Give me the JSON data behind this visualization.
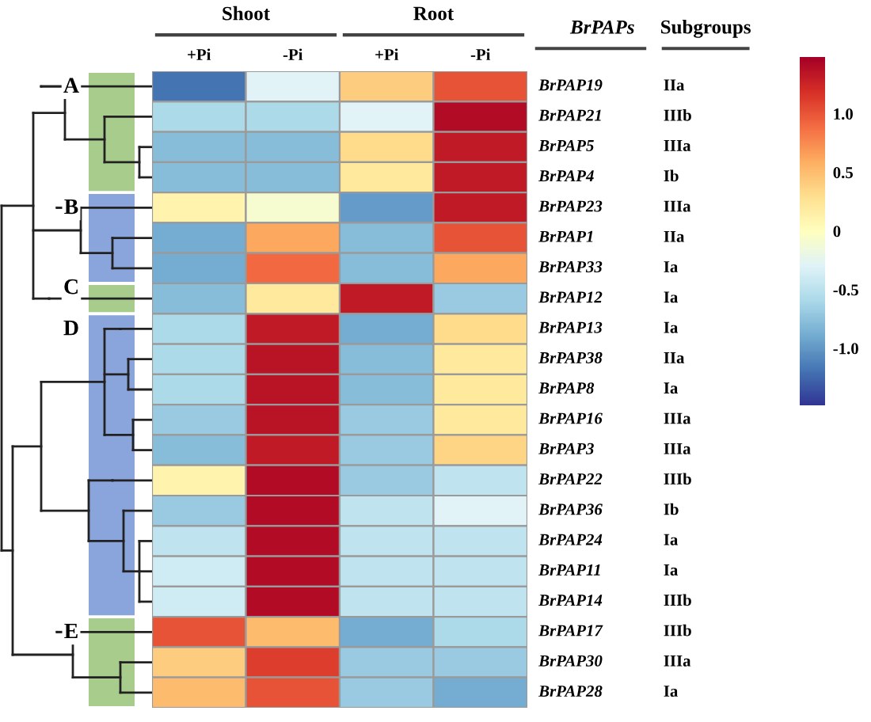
{
  "chart_data": {
    "type": "heatmap",
    "categories": [
      "+Pi",
      "-Pi",
      "+Pi",
      "-Pi"
    ],
    "y_categories": [
      "BrPAP19",
      "BrPAP21",
      "BrPAP5",
      "BrPAP4",
      "BrPAP23",
      "BrPAP1",
      "BrPAP33",
      "BrPAP12",
      "BrPAP13",
      "BrPAP38",
      "BrPAP8",
      "BrPAP16",
      "BrPAP3",
      "BrPAP22",
      "BrPAP36",
      "BrPAP24",
      "BrPAP11",
      "BrPAP14",
      "BrPAP17",
      "BrPAP30",
      "BrPAP28"
    ],
    "y2_categories": [
      "IIa",
      "IIIb",
      "IIIa",
      "Ib",
      "IIIa",
      "IIa",
      "Ia",
      "Ia",
      "Ia",
      "IIa",
      "Ia",
      "IIIa",
      "IIIa",
      "IIIb",
      "Ib",
      "Ia",
      "Ia",
      "IIIb",
      "IIIb",
      "IIIa",
      "Ia"
    ],
    "cells": [
      [
        -1.2,
        -0.3,
        0.4,
        1.0
      ],
      [
        -0.6,
        -0.6,
        -0.3,
        1.4
      ],
      [
        -0.8,
        -0.8,
        0.3,
        1.3
      ],
      [
        -0.8,
        -0.8,
        0.2,
        1.3
      ],
      [
        0.1,
        -0.1,
        -1.0,
        1.3
      ],
      [
        -0.9,
        0.6,
        -0.8,
        1.0
      ],
      [
        -0.9,
        0.9,
        -0.8,
        0.6
      ],
      [
        -0.8,
        0.2,
        1.3,
        -0.7
      ],
      [
        -0.6,
        1.3,
        -0.9,
        0.3
      ],
      [
        -0.6,
        1.35,
        -0.8,
        0.2
      ],
      [
        -0.6,
        1.35,
        -0.8,
        0.2
      ],
      [
        -0.7,
        1.35,
        -0.7,
        0.2
      ],
      [
        -0.8,
        1.3,
        -0.7,
        0.35
      ],
      [
        0.1,
        1.4,
        -0.7,
        -0.5
      ],
      [
        -0.7,
        1.4,
        -0.5,
        -0.3
      ],
      [
        -0.5,
        1.4,
        -0.5,
        -0.5
      ],
      [
        -0.4,
        1.4,
        -0.5,
        -0.5
      ],
      [
        -0.4,
        1.4,
        -0.5,
        -0.5
      ],
      [
        1.0,
        0.5,
        -0.9,
        -0.6
      ],
      [
        0.4,
        1.1,
        -0.7,
        -0.7
      ],
      [
        0.5,
        1.0,
        -0.7,
        -0.9
      ]
    ],
    "clim": [
      -1.5,
      1.47
    ],
    "cticks": [
      {
        "value": 1,
        "label": "1.0"
      },
      0.5,
      0,
      -0.5,
      {
        "value": -1,
        "label": "-1.0"
      }
    ],
    "annotations": [
      "Shoot",
      "Root",
      "BrPAPs",
      "Subgroups",
      "A",
      "B",
      "C",
      "D",
      "E"
    ]
  }
}
